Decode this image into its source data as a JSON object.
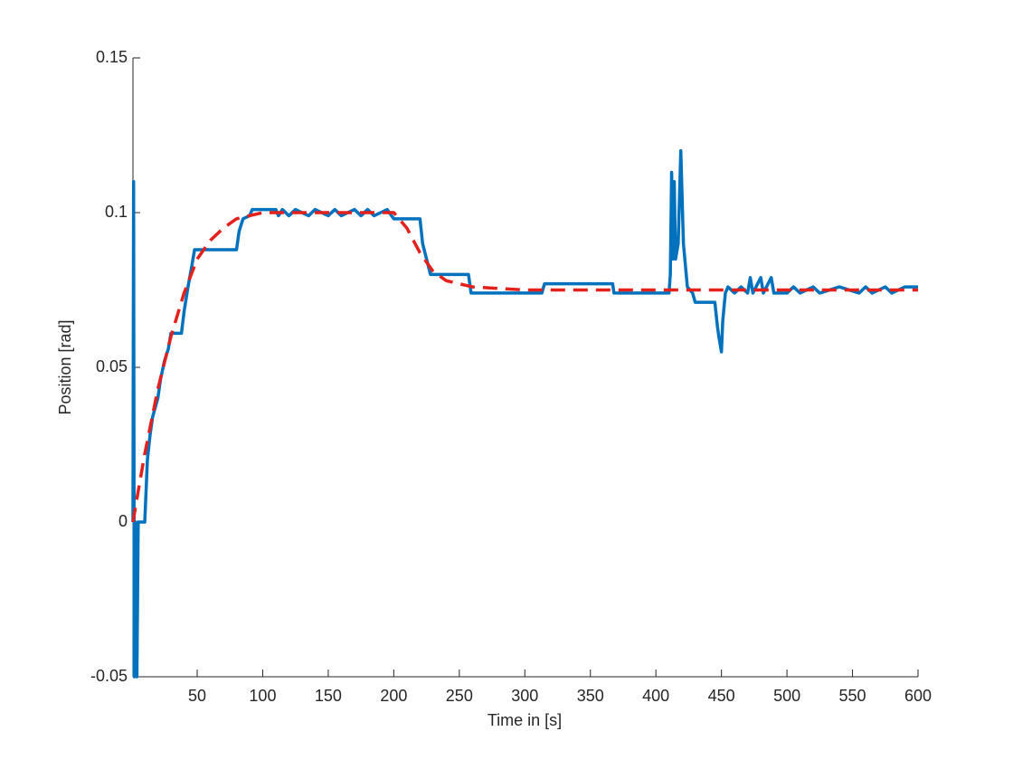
{
  "chart_data": {
    "type": "line",
    "xlabel": "Time in [s]",
    "ylabel": "Position [rad]",
    "xlim": [
      1,
      600
    ],
    "xticks": [
      50,
      100,
      150,
      200,
      250,
      300,
      350,
      400,
      450,
      500,
      550,
      600
    ],
    "ylim": [
      -0.05,
      0.15
    ],
    "yticks": [
      -0.05,
      0,
      0.05,
      0.1,
      0.15
    ],
    "grid": false,
    "series": [
      {
        "color": "#0072bd",
        "dash": "solid",
        "x": [
          1,
          1.5,
          2,
          3,
          4,
          5,
          10,
          11,
          12,
          14,
          16,
          20,
          22,
          25,
          28,
          30,
          38,
          40,
          43,
          46,
          48,
          80,
          82,
          85,
          90,
          92,
          110,
          112,
          115,
          120,
          125,
          135,
          140,
          150,
          155,
          160,
          170,
          175,
          180,
          185,
          195,
          200,
          220,
          222,
          225,
          228,
          257,
          259,
          313,
          315,
          367,
          368,
          410,
          411,
          412,
          413,
          414,
          415,
          417,
          419,
          421,
          424,
          428,
          430,
          445,
          447,
          448,
          450,
          451,
          453,
          455,
          460,
          465,
          470,
          472,
          474,
          480,
          482,
          488,
          490,
          500,
          505,
          510,
          520,
          525,
          540,
          555,
          560,
          565,
          575,
          580,
          590,
          600
        ],
        "values": [
          0,
          0.11,
          -0.05,
          0,
          -0.05,
          0,
          0,
          0.01,
          0.02,
          0.028,
          0.034,
          0.04,
          0.046,
          0.052,
          0.056,
          0.061,
          0.061,
          0.068,
          0.076,
          0.083,
          0.088,
          0.088,
          0.094,
          0.098,
          0.099,
          0.101,
          0.101,
          0.099,
          0.101,
          0.099,
          0.101,
          0.099,
          0.101,
          0.099,
          0.101,
          0.099,
          0.101,
          0.099,
          0.101,
          0.099,
          0.101,
          0.098,
          0.098,
          0.09,
          0.085,
          0.08,
          0.08,
          0.074,
          0.074,
          0.077,
          0.077,
          0.074,
          0.074,
          0.08,
          0.113,
          0.085,
          0.11,
          0.085,
          0.09,
          0.12,
          0.09,
          0.076,
          0.074,
          0.071,
          0.071,
          0.063,
          0.06,
          0.055,
          0.065,
          0.074,
          0.076,
          0.074,
          0.076,
          0.074,
          0.079,
          0.074,
          0.079,
          0.074,
          0.079,
          0.074,
          0.074,
          0.076,
          0.074,
          0.076,
          0.074,
          0.076,
          0.074,
          0.076,
          0.074,
          0.076,
          0.074,
          0.076,
          0.076
        ]
      },
      {
        "color": "#e3201c",
        "dash": "dashed",
        "x": [
          1,
          5,
          10,
          20,
          30,
          40,
          50,
          60,
          70,
          80,
          100,
          200,
          210,
          220,
          230,
          240,
          260,
          300,
          600
        ],
        "values": [
          0,
          0.01,
          0.022,
          0.043,
          0.06,
          0.074,
          0.085,
          0.091,
          0.095,
          0.098,
          0.1,
          0.1,
          0.095,
          0.087,
          0.081,
          0.078,
          0.076,
          0.075,
          0.075
        ]
      }
    ]
  }
}
